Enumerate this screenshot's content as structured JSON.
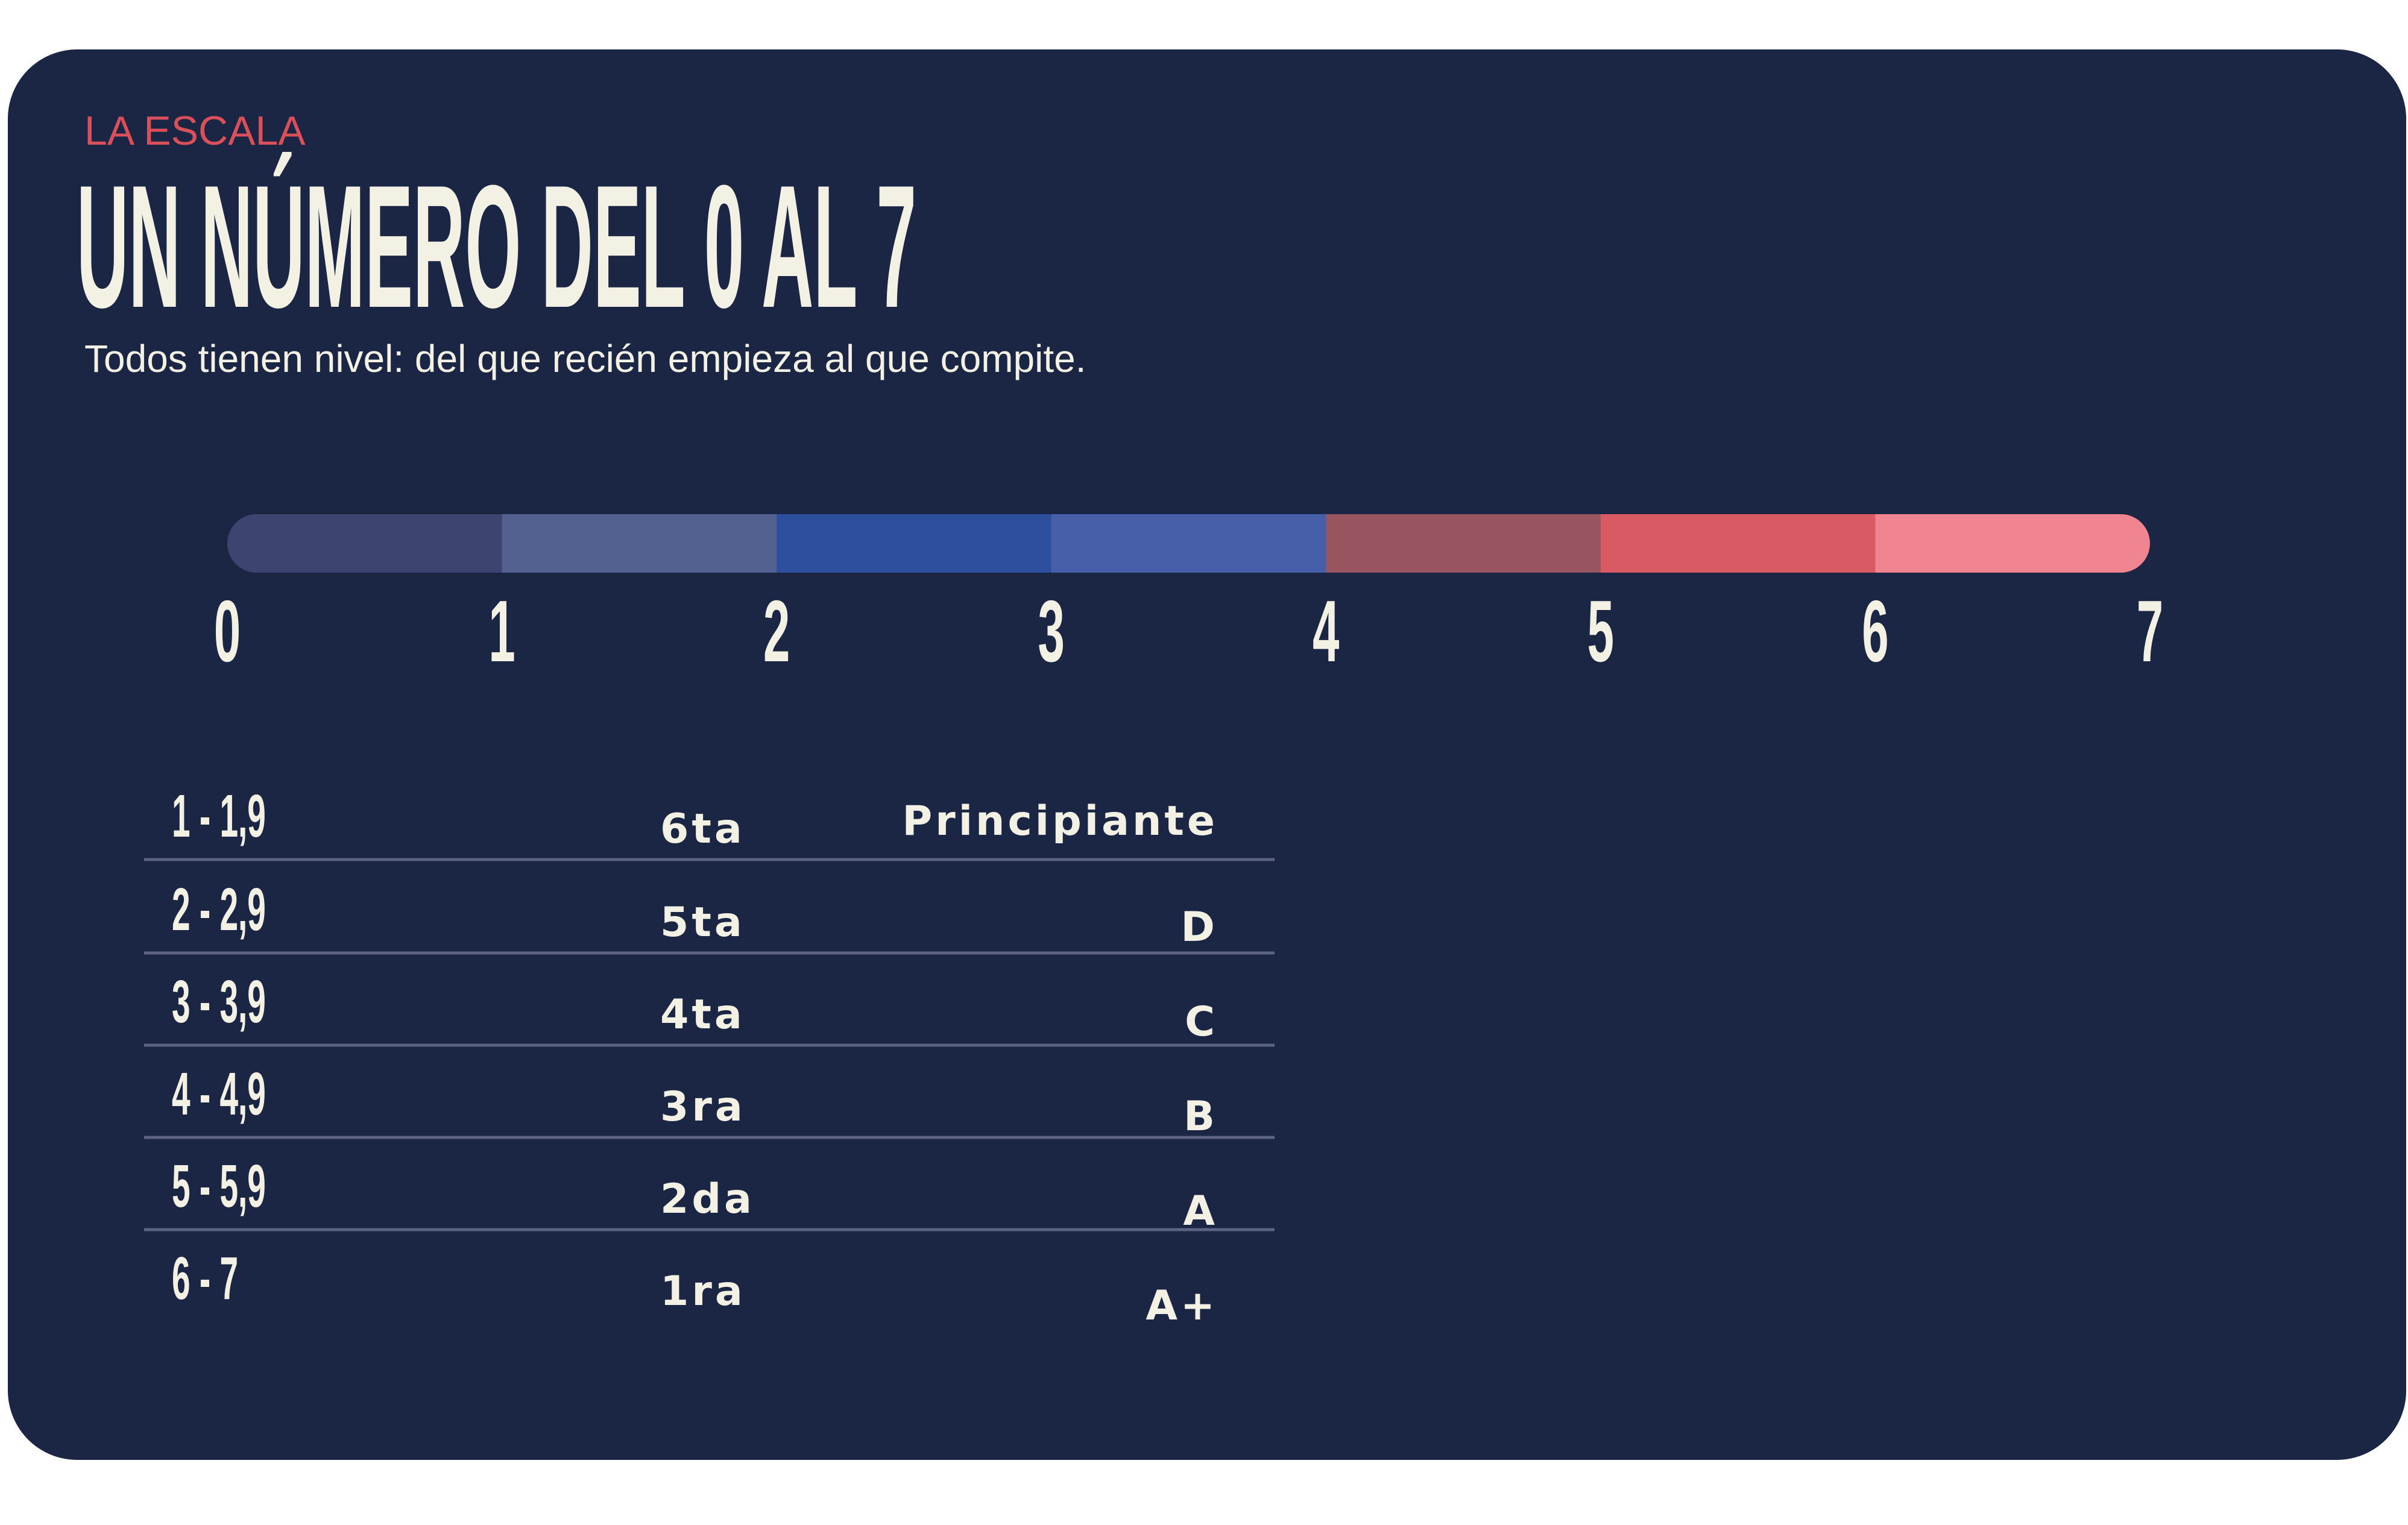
{
  "header": {
    "kicker": "LA ESCALA",
    "title": "UN NÚMERO DEL 0 AL 7",
    "subtitle": "Todos tienen nivel: del que recién empieza al que compite."
  },
  "scale": {
    "ticks": [
      0,
      1,
      2,
      3,
      4,
      5,
      6,
      7
    ],
    "colors": [
      "#3d4470",
      "#536191",
      "#2d4f9e",
      "#475fa8",
      "#985560",
      "#d95a62",
      "#f08591"
    ]
  },
  "table": {
    "rows": [
      [
        "1 - 1,9",
        "6ta",
        "Principiante"
      ],
      [
        "2 - 2,9",
        "5ta",
        "D"
      ],
      [
        "3 - 3,9",
        "4ta",
        "C"
      ],
      [
        "4 - 4,9",
        "3ra",
        "B"
      ],
      [
        "5 - 5,9",
        "2da",
        "A"
      ],
      [
        "6 - 7",
        "1ra",
        "A+"
      ]
    ]
  }
}
